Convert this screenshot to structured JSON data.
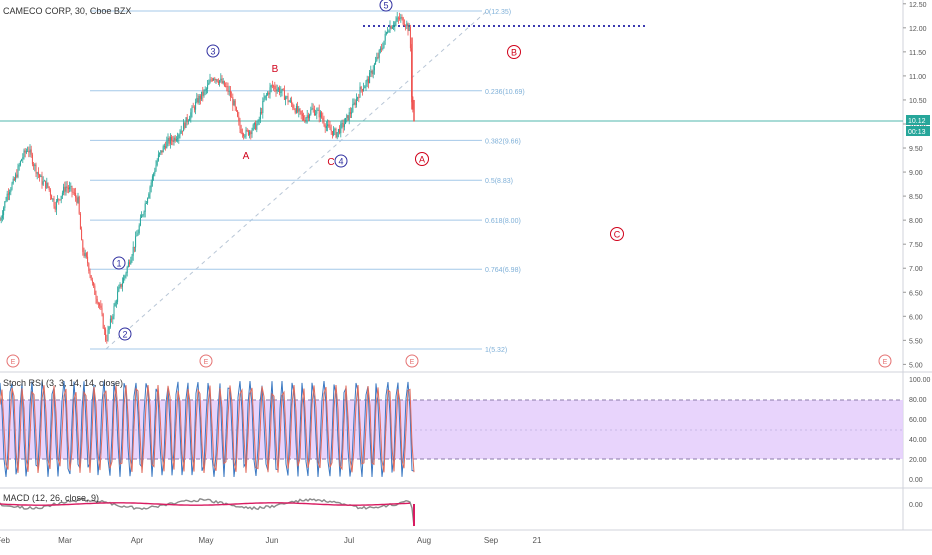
{
  "symbol_title": "CAMECO CORP, 30, Cboe BZX",
  "colors": {
    "up": "#26a69a",
    "down": "#ef5350",
    "fib": "#a4c8e8",
    "fib_text": "#7fb0d8",
    "wave_impulse": "#3030a0",
    "wave_corrective": "#d0021b",
    "stoch_fill": "#e4cdfb",
    "stoch_k": "#3a78c2",
    "stoch_d": "#e06a5a",
    "macd_line": "#2e2e2e",
    "macd_signal": "#d81b60",
    "last_price": "#26a69a"
  },
  "price_axis": [
    "12.50",
    "12.00",
    "11.50",
    "11.00",
    "10.50",
    "10.00",
    "9.50",
    "9.00",
    "8.50",
    "8.00",
    "7.50",
    "7.00",
    "6.50",
    "6.00",
    "5.50",
    "5.00"
  ],
  "price_labels": {
    "last": "10.12",
    "sub": "00:13"
  },
  "stoch_axis": [
    "100.00",
    "80.00",
    "60.00",
    "40.00",
    "20.00",
    "0.00"
  ],
  "macd_axis": [
    "0.00"
  ],
  "time_axis": [
    "Feb",
    "Mar",
    "Apr",
    "May",
    "Jun",
    "Jul",
    "Aug",
    "Sep",
    "21"
  ],
  "fib_levels": [
    {
      "label": "0(12.35)",
      "price": 12.35
    },
    {
      "label": "0.236(10.69)",
      "price": 10.69
    },
    {
      "label": "0.382(9.66)",
      "price": 9.66
    },
    {
      "label": "0.5(8.83)",
      "price": 8.83
    },
    {
      "label": "0.618(8.00)",
      "price": 8.0
    },
    {
      "label": "0.764(6.98)",
      "price": 6.98
    },
    {
      "label": "1(5.32)",
      "price": 5.32
    }
  ],
  "wave_labels_impulse": [
    "1",
    "2",
    "3",
    "4",
    "5"
  ],
  "wave_labels_corrective_plain": [
    "A",
    "B",
    "C"
  ],
  "wave_labels_corrective_circled": [
    "A",
    "B",
    "C"
  ],
  "event_marker": "E",
  "stoch_title": "Stoch RSI (3, 3, 14, 14, close)",
  "macd_title": "MACD (12, 26, close, 9)"
}
